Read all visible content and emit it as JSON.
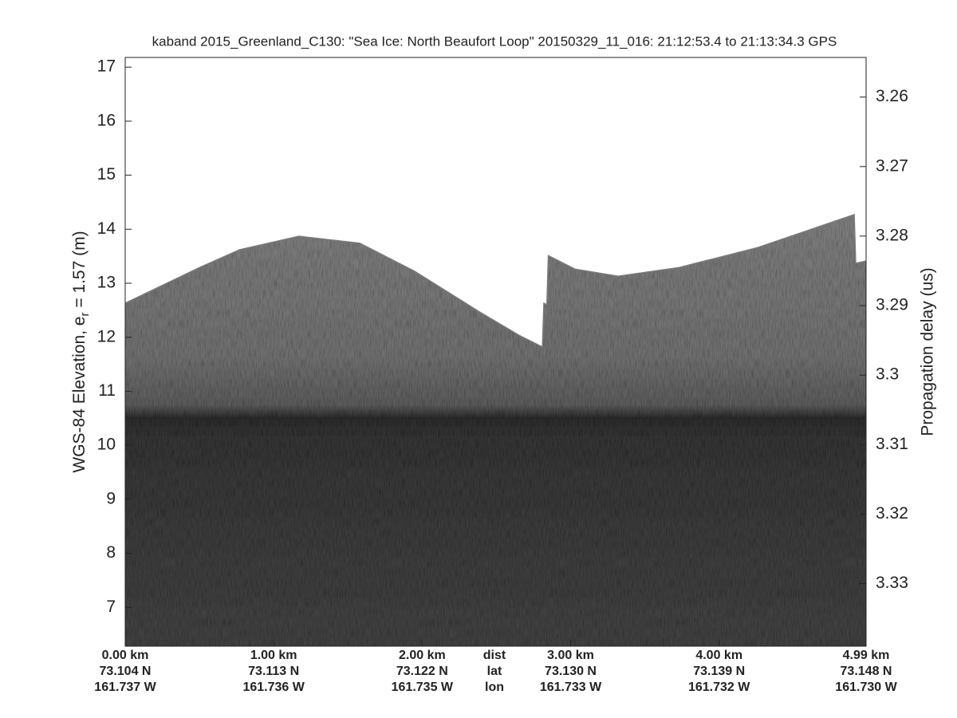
{
  "chart_data": {
    "type": "echogram",
    "title": "kaband 2015_Greenland_C130: \"Sea Ice: North Beaufort Loop\"  20150329_11_016: 21:12:53.4 to 21:13:34.3 GPS",
    "ylabel": {
      "text": "WGS-84 Elevation, e",
      "subscript": "r",
      "suffix": " = 1.57 (m)"
    },
    "y2label": "Propagation delay (us)",
    "xlim": [
      0,
      4.99
    ],
    "ylim": [
      6.28,
      17.18
    ],
    "y2lim": [
      3.339,
      3.2543
    ],
    "yticks": [
      7,
      8,
      9,
      10,
      11,
      12,
      13,
      14,
      15,
      16,
      17
    ],
    "y2ticks": [
      3.26,
      3.27,
      3.28,
      3.29,
      {
        "value": 3.3,
        "label": "3.3"
      },
      3.31,
      3.32,
      3.33
    ],
    "xticks": [
      {
        "value": 0,
        "label": "0.00 km"
      },
      {
        "value": 1,
        "label": "1.00 km"
      },
      {
        "value": 2,
        "label": "2.00 km"
      },
      {
        "value": 3,
        "label": "3.00 km"
      },
      {
        "value": 4,
        "label": "4.00 km"
      },
      {
        "value": 4.99,
        "label": "4.99 km"
      }
    ],
    "lat_labels": [
      "73.104 N",
      "73.113 N",
      "73.122 N",
      "73.130 N",
      "73.139 N",
      "73.148 N"
    ],
    "lon_labels": [
      "161.737 W",
      "161.736 W",
      "161.735 W",
      "161.733 W",
      "161.732 W",
      "161.730 W"
    ],
    "row_labels": [
      "dist",
      "lat",
      "lon"
    ],
    "x": [
      0,
      0.5,
      0.77,
      1.17,
      1.58,
      1.95,
      2.38,
      2.65,
      2.81,
      2.82,
      2.84,
      2.85,
      3.03,
      3.32,
      3.73,
      4.26,
      4.91,
      4.92,
      4.99
    ],
    "values": [
      12.63,
      13.29,
      13.62,
      13.87,
      13.74,
      13.22,
      12.48,
      12.04,
      11.82,
      12.63,
      12.6,
      13.51,
      13.26,
      13.13,
      13.29,
      13.66,
      14.27,
      13.37,
      13.41
    ]
  }
}
